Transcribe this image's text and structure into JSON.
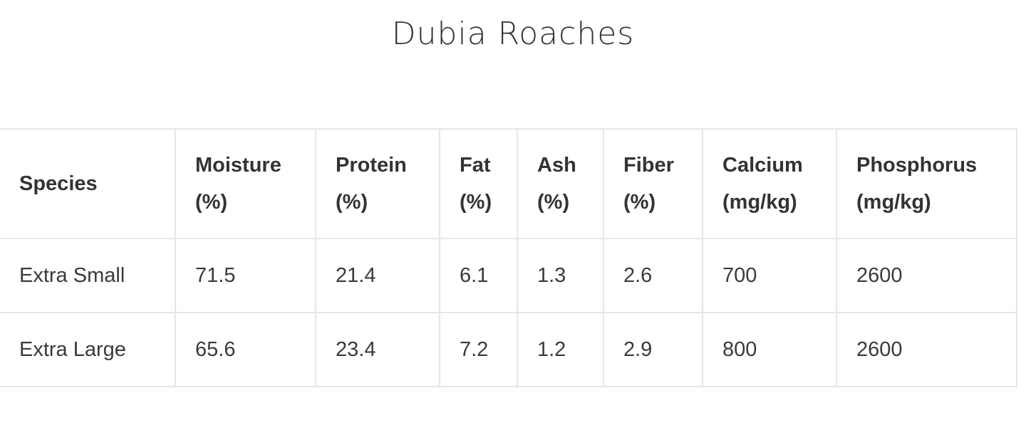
{
  "header": {
    "title": "Dubia Roaches"
  },
  "table": {
    "columns": [
      "Species",
      "Moisture (%)",
      "Protein (%)",
      "Fat (%)",
      "Ash (%)",
      "Fiber (%)",
      "Calcium (mg/kg)",
      "Phosphorus (mg/kg)"
    ],
    "rows": [
      [
        "Extra Small",
        "71.5",
        "21.4",
        "6.1",
        "1.3",
        "2.6",
        "700",
        "2600"
      ],
      [
        "Extra Large",
        "65.6",
        "23.4",
        "7.2",
        "1.2",
        "2.9",
        "800",
        "2600"
      ]
    ]
  }
}
